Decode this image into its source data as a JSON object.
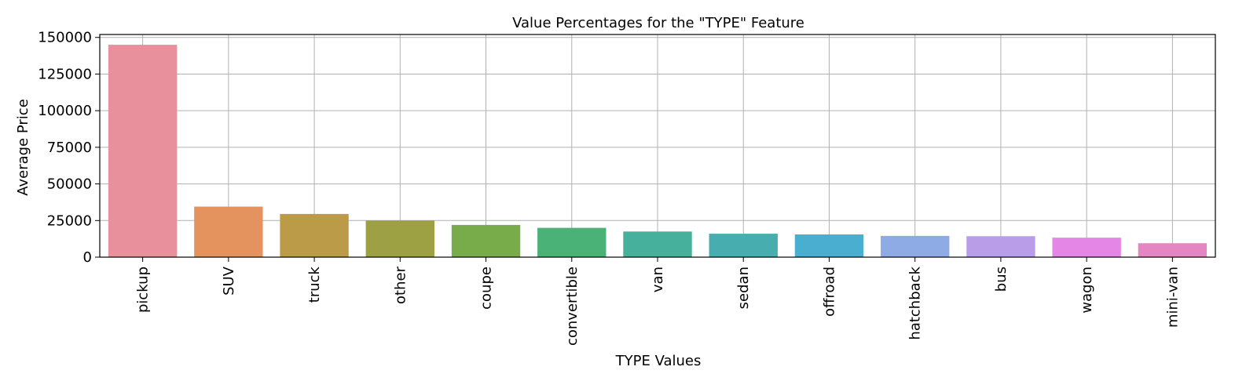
{
  "chart_data": {
    "type": "bar",
    "title": "Value Percentages for the \"TYPE\" Feature",
    "xlabel": "TYPE Values",
    "ylabel": "Average Price",
    "categories": [
      "pickup",
      "SUV",
      "truck",
      "other",
      "coupe",
      "convertible",
      "van",
      "sedan",
      "offroad",
      "hatchback",
      "bus",
      "wagon",
      "mini-van"
    ],
    "values": [
      145000,
      34500,
      29500,
      25000,
      22000,
      20000,
      17500,
      16000,
      15500,
      14500,
      14300,
      13300,
      9500
    ],
    "colors": [
      "#e8919d",
      "#e4935e",
      "#bb9a48",
      "#9ea044",
      "#78ab49",
      "#4ab277",
      "#46b09c",
      "#47adae",
      "#4aaed1",
      "#8eabe6",
      "#b99de8",
      "#e386e6",
      "#e486c1"
    ],
    "ylim": [
      0,
      152000
    ],
    "yticks": [
      0,
      25000,
      50000,
      75000,
      100000,
      125000,
      150000
    ],
    "grid": true,
    "legend": "none"
  }
}
